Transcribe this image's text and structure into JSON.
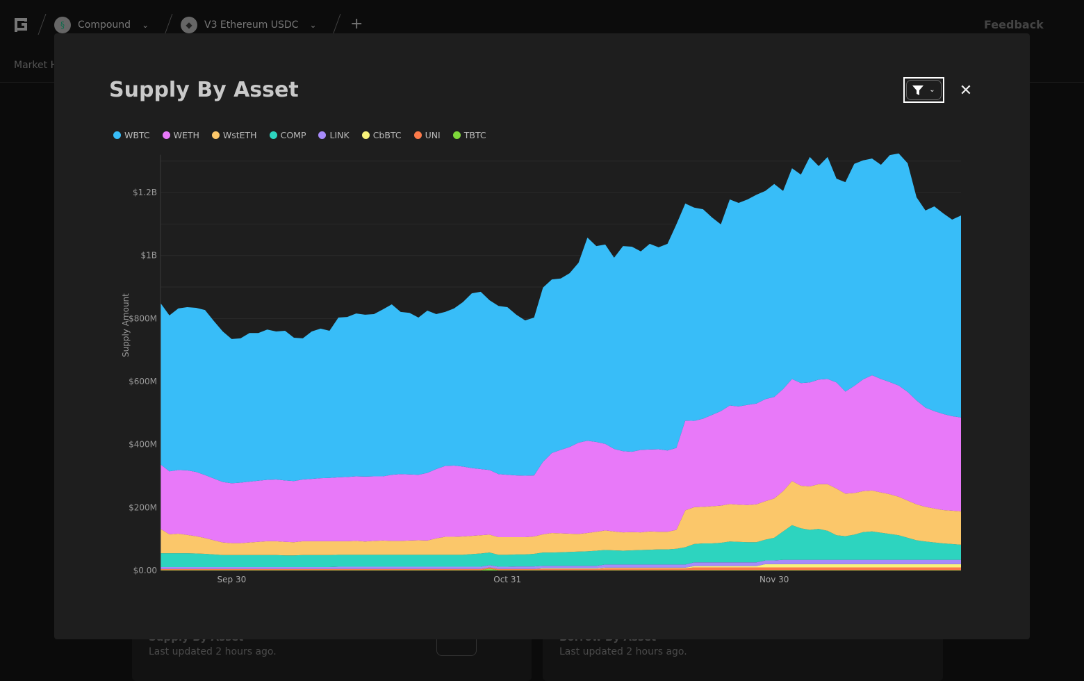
{
  "topbar": {
    "protocol": "Compound",
    "market": "V3 Ethereum USDC",
    "add_label": "+",
    "feedback": "Feedback",
    "tab_partial": "Market H"
  },
  "cards": [
    {
      "title": "Supply By Asset",
      "updated": "Last updated 2 hours ago."
    },
    {
      "title": "Borrow By Asset",
      "updated": "Last updated 2 hours ago."
    }
  ],
  "modal": {
    "title": "Supply By Asset",
    "filter_icon": "filter-icon",
    "close_icon": "close-icon"
  },
  "chart_data": {
    "type": "area",
    "stacked": true,
    "title": "Supply By Asset",
    "ylabel": "Supply Amount",
    "xlabel": "",
    "y_unit": "USD millions",
    "ylim": [
      0,
      1320
    ],
    "yticks": [
      {
        "v": 0,
        "label": "$0.00"
      },
      {
        "v": 200,
        "label": "$200M"
      },
      {
        "v": 400,
        "label": "$400M"
      },
      {
        "v": 600,
        "label": "$600M"
      },
      {
        "v": 800,
        "label": "$800M"
      },
      {
        "v": 1000,
        "label": "$1B"
      },
      {
        "v": 1200,
        "label": "$1.2B"
      }
    ],
    "xticks": [
      "Sep 30",
      "Oct 31",
      "Nov 30"
    ],
    "grid": true,
    "legend_position": "top-left",
    "x": [
      "Sep 22",
      "Sep 23",
      "Sep 24",
      "Sep 25",
      "Sep 26",
      "Sep 27",
      "Sep 28",
      "Sep 29",
      "Sep 30",
      "Oct 1",
      "Oct 2",
      "Oct 3",
      "Oct 4",
      "Oct 5",
      "Oct 6",
      "Oct 7",
      "Oct 8",
      "Oct 9",
      "Oct 10",
      "Oct 11",
      "Oct 12",
      "Oct 13",
      "Oct 14",
      "Oct 15",
      "Oct 16",
      "Oct 17",
      "Oct 18",
      "Oct 19",
      "Oct 20",
      "Oct 21",
      "Oct 22",
      "Oct 23",
      "Oct 24",
      "Oct 25",
      "Oct 26",
      "Oct 27",
      "Oct 28",
      "Oct 29",
      "Oct 30",
      "Oct 31",
      "Nov 1",
      "Nov 2",
      "Nov 3",
      "Nov 4",
      "Nov 5",
      "Nov 6",
      "Nov 7",
      "Nov 8",
      "Nov 9",
      "Nov 10",
      "Nov 11",
      "Nov 12",
      "Nov 13",
      "Nov 14",
      "Nov 15",
      "Nov 16",
      "Nov 17",
      "Nov 18",
      "Nov 19",
      "Nov 20",
      "Nov 21",
      "Nov 22",
      "Nov 23",
      "Nov 24",
      "Nov 25",
      "Nov 26",
      "Nov 27",
      "Nov 28",
      "Nov 29",
      "Nov 30",
      "Dec 1",
      "Dec 2",
      "Dec 3",
      "Dec 4",
      "Dec 5",
      "Dec 6",
      "Dec 7",
      "Dec 8",
      "Dec 9",
      "Dec 10",
      "Dec 11",
      "Dec 12",
      "Dec 13",
      "Dec 14",
      "Dec 15",
      "Dec 16",
      "Dec 17",
      "Dec 18",
      "Dec 19",
      "Dec 20",
      "Dec 21"
    ],
    "series": [
      {
        "name": "TBTC",
        "color": "#7ed83a",
        "values": [
          1,
          1,
          1,
          1,
          1,
          1,
          1,
          1,
          1,
          1,
          1,
          1,
          1,
          1,
          1,
          1,
          1,
          1,
          1,
          1,
          1,
          1,
          1,
          1,
          1,
          1,
          1,
          1,
          1,
          1,
          1,
          1,
          1,
          1,
          1,
          1,
          1,
          6,
          1,
          1,
          1,
          1,
          1,
          1,
          1,
          1,
          1,
          1,
          1,
          1,
          1,
          1,
          1,
          1,
          1,
          1,
          1,
          1,
          1,
          1,
          1,
          1,
          1,
          1,
          1,
          1,
          1,
          1,
          1,
          1,
          1,
          1,
          1,
          1,
          1,
          1,
          1,
          1,
          1,
          1,
          1,
          1,
          1,
          1,
          1,
          1,
          1,
          1,
          1,
          1,
          1
        ]
      },
      {
        "name": "UNI",
        "color": "#fb7a4a",
        "values": [
          4,
          4,
          4,
          4,
          4,
          4,
          4,
          4,
          4,
          4,
          4,
          4,
          4,
          4,
          4,
          4,
          4,
          4,
          4,
          4,
          4,
          4,
          4,
          4,
          4,
          4,
          4,
          4,
          4,
          4,
          4,
          4,
          4,
          4,
          4,
          4,
          4,
          4,
          4,
          4,
          4,
          4,
          4,
          4,
          4,
          4,
          4,
          4,
          4,
          4,
          6,
          6,
          6,
          6,
          6,
          6,
          6,
          6,
          6,
          6,
          9,
          9,
          9,
          9,
          9,
          9,
          9,
          9,
          9,
          9,
          9,
          9,
          9,
          9,
          9,
          9,
          9,
          9,
          9,
          9,
          9,
          9,
          9,
          9,
          9,
          9,
          9,
          9,
          9,
          9,
          9
        ]
      },
      {
        "name": "CbBTC",
        "color": "#f8f27a",
        "values": [
          0,
          0,
          0,
          0,
          0,
          0,
          0,
          0,
          0,
          0,
          0,
          0,
          0,
          0,
          0,
          0,
          0,
          0,
          0,
          0,
          0,
          0,
          0,
          0,
          0,
          0,
          0,
          0,
          0,
          0,
          0,
          0,
          0,
          0,
          0,
          0,
          0,
          0,
          0,
          0,
          0,
          0,
          0,
          2,
          2,
          2,
          2,
          2,
          2,
          2,
          2,
          2,
          2,
          2,
          2,
          2,
          2,
          2,
          2,
          2,
          4,
          4,
          4,
          4,
          4,
          4,
          4,
          4,
          10,
          10,
          10,
          10,
          10,
          10,
          10,
          10,
          10,
          10,
          10,
          10,
          10,
          10,
          10,
          10,
          10,
          10,
          10,
          10,
          10,
          10,
          10
        ]
      },
      {
        "name": "LINK",
        "color": "#a78bfa",
        "values": [
          6,
          6,
          6,
          6,
          6,
          6,
          6,
          6,
          6,
          6,
          6,
          6,
          6,
          6,
          6,
          6,
          6,
          6,
          6,
          6,
          7,
          7,
          7,
          7,
          7,
          7,
          7,
          7,
          7,
          7,
          7,
          7,
          7,
          7,
          7,
          7,
          7,
          7,
          7,
          7,
          8,
          8,
          8,
          8,
          8,
          8,
          8,
          8,
          8,
          8,
          10,
          10,
          10,
          10,
          10,
          10,
          10,
          10,
          10,
          10,
          12,
          12,
          12,
          12,
          12,
          12,
          12,
          12,
          12,
          12,
          14,
          14,
          14,
          14,
          14,
          14,
          14,
          14,
          14,
          14,
          14,
          14,
          14,
          14,
          14,
          14,
          14,
          14,
          14,
          14,
          14
        ]
      },
      {
        "name": "COMP",
        "color": "#2dd4bf",
        "values": [
          44,
          44,
          44,
          44,
          43,
          42,
          40,
          38,
          38,
          38,
          38,
          38,
          38,
          38,
          37,
          37,
          38,
          38,
          38,
          38,
          38,
          38,
          38,
          38,
          38,
          38,
          38,
          38,
          38,
          38,
          38,
          38,
          38,
          38,
          38,
          40,
          42,
          40,
          38,
          38,
          38,
          38,
          40,
          42,
          42,
          43,
          44,
          45,
          46,
          48,
          46,
          45,
          44,
          45,
          46,
          47,
          48,
          48,
          50,
          55,
          58,
          60,
          60,
          62,
          66,
          65,
          64,
          64,
          66,
          72,
          90,
          110,
          100,
          95,
          98,
          92,
          78,
          75,
          80,
          88,
          90,
          86,
          82,
          78,
          70,
          62,
          58,
          55,
          52,
          50,
          48
        ]
      },
      {
        "name": "WstETH",
        "color": "#fbc76a",
        "values": [
          77,
          60,
          62,
          58,
          55,
          50,
          45,
          40,
          38,
          38,
          40,
          42,
          44,
          44,
          43,
          42,
          44,
          44,
          44,
          44,
          43,
          43,
          44,
          42,
          44,
          45,
          44,
          44,
          45,
          46,
          45,
          52,
          57,
          57,
          58,
          58,
          58,
          57,
          56,
          56,
          55,
          55,
          55,
          58,
          62,
          60,
          58,
          56,
          58,
          60,
          62,
          60,
          58,
          58,
          56,
          58,
          56,
          56,
          60,
          117,
          117,
          116,
          118,
          118,
          119,
          118,
          118,
          120,
          122,
          125,
          128,
          140,
          135,
          138,
          142,
          148,
          148,
          135,
          132,
          130,
          130,
          128,
          126,
          122,
          118,
          114,
          110,
          108,
          106,
          106,
          106
        ]
      },
      {
        "name": "WETH",
        "color": "#e879f9",
        "values": [
          205,
          200,
          202,
          205,
          204,
          200,
          196,
          192,
          190,
          192,
          193,
          194,
          195,
          196,
          195,
          194,
          196,
          198,
          200,
          201,
          203,
          204,
          205,
          206,
          205,
          204,
          210,
          212,
          210,
          208,
          215,
          220,
          225,
          226,
          222,
          215,
          210,
          205,
          200,
          198,
          196,
          195,
          194,
          230,
          254,
          265,
          275,
          290,
          293,
          285,
          275,
          262,
          258,
          255,
          262,
          260,
          262,
          258,
          260,
          285,
          274,
          280,
          290,
          300,
          313,
          312,
          318,
          320,
          324,
          322,
          324,
          324,
          326,
          330,
          332,
          334,
          337,
          324,
          340,
          355,
          366,
          360,
          356,
          353,
          345,
          330,
          315,
          309,
          305,
          300,
          298
        ]
      },
      {
        "name": "WBTC",
        "color": "#38bdf8",
        "values": [
          512,
          495,
          513,
          518,
          521,
          524,
          500,
          478,
          458,
          458,
          472,
          469,
          477,
          470,
          475,
          455,
          448,
          468,
          475,
          467,
          507,
          508,
          517,
          514,
          515,
          530,
          541,
          515,
          513,
          499,
          515,
          492,
          489,
          499,
          522,
          555,
          563,
          539,
          534,
          532,
          510,
          493,
          501,
          553,
          551,
          544,
          552,
          571,
          645,
          622,
          633,
          607,
          651,
          651,
          630,
          653,
          641,
          656,
          710,
          689,
          677,
          665,
          627,
          593,
          654,
          646,
          652,
          663,
          661,
          676,
          629,
          669,
          662,
          716,
          678,
          705,
          647,
          665,
          705,
          695,
          688,
          680,
          721,
          737,
          726,
          645,
          626,
          650,
          637,
          624,
          641
        ]
      }
    ],
    "legend_order": [
      "WBTC",
      "WETH",
      "WstETH",
      "COMP",
      "LINK",
      "CbBTC",
      "UNI",
      "TBTC"
    ]
  }
}
